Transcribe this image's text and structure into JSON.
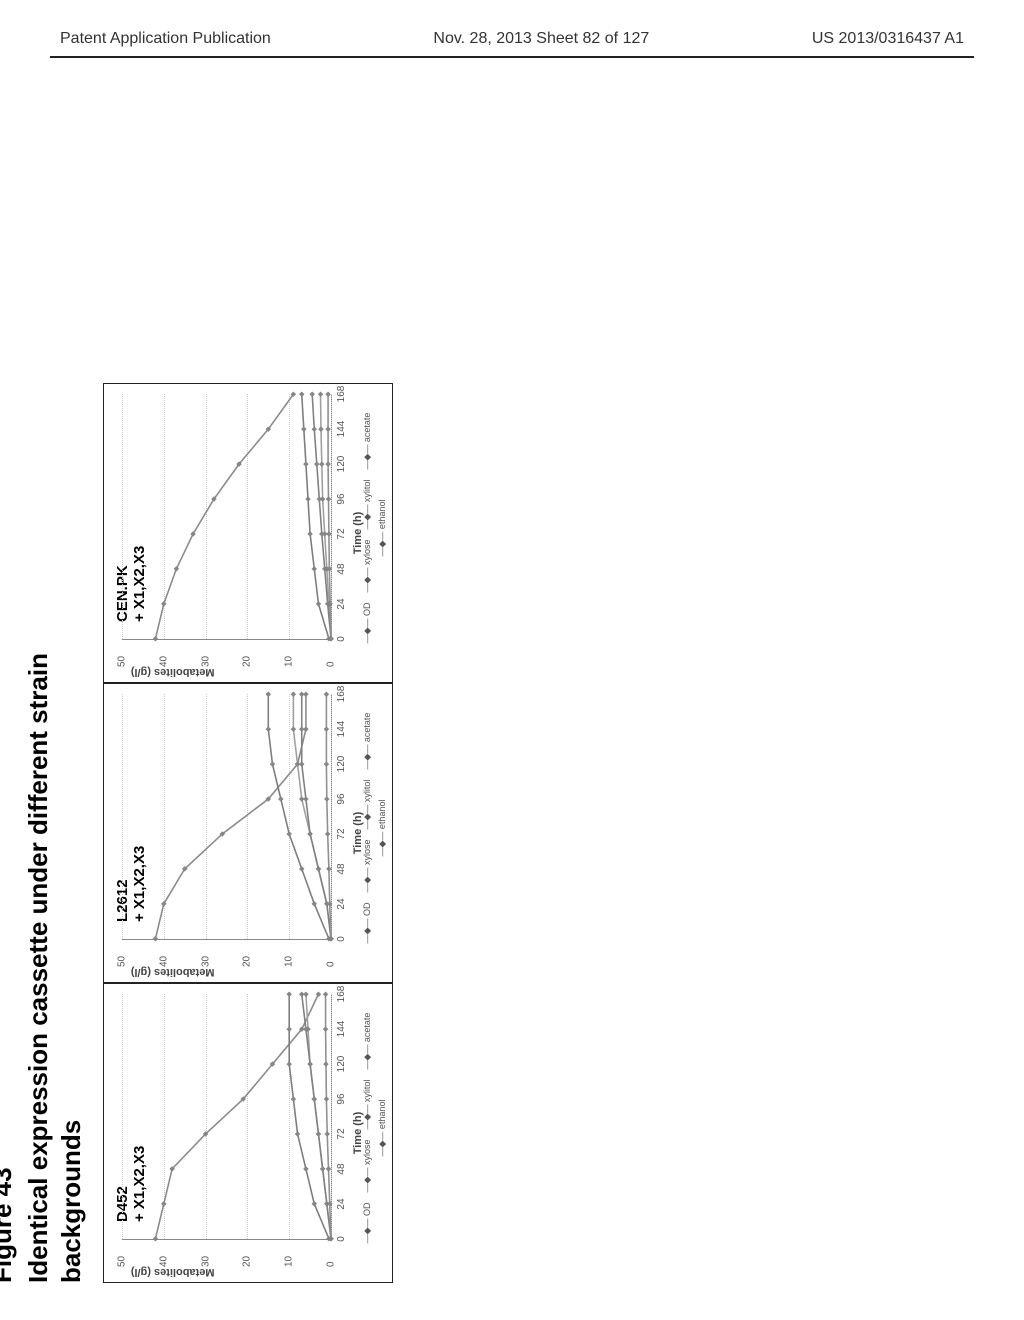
{
  "header": {
    "left": "Patent Application Publication",
    "center": "Nov. 28, 2013  Sheet 82 of 127",
    "right": "US 2013/0316437 A1"
  },
  "figure": {
    "label": "Figure 43",
    "title_line1": "Identical expression cassette under different strain",
    "title_line2": "backgrounds",
    "ylabel": "Metabolites (g/l)",
    "xlabel": "Time (h)",
    "ylim": [
      0,
      50
    ],
    "xlim": [
      0,
      168
    ],
    "yticks": [
      0,
      10,
      20,
      30,
      40,
      50
    ],
    "xticks": [
      0,
      24,
      48,
      72,
      96,
      120,
      144,
      168
    ],
    "legend": [
      "OD",
      "xylose",
      "xylitol",
      "acetate",
      "ethanol"
    ],
    "series_colors": {
      "OD": "#7d7d7d",
      "xylose": "#8a8a8a",
      "xylitol": "#a0a0a0",
      "acetate": "#8f8f8f",
      "ethanol": "#808080"
    },
    "line_width": 1.6,
    "marker": "diamond",
    "marker_size": 5,
    "grid_color": "#dddddd",
    "background_color": "#ffffff",
    "border_color": "#222222",
    "tick_fontsize": 10,
    "label_fontsize": 11,
    "title_fontsize": 26,
    "panels": [
      {
        "title_line1": "D452",
        "title_line2": "+ X1,X2,X3",
        "data": {
          "xylose": [
            [
              0,
              42
            ],
            [
              24,
              40
            ],
            [
              48,
              38
            ],
            [
              72,
              30
            ],
            [
              96,
              21
            ],
            [
              120,
              14
            ],
            [
              144,
              7
            ],
            [
              168,
              3
            ]
          ],
          "OD": [
            [
              0,
              0.5
            ],
            [
              24,
              4
            ],
            [
              48,
              6
            ],
            [
              72,
              8
            ],
            [
              96,
              9
            ],
            [
              120,
              10
            ],
            [
              144,
              10
            ],
            [
              168,
              10
            ]
          ],
          "xylitol": [
            [
              0,
              0
            ],
            [
              24,
              1
            ],
            [
              48,
              2
            ],
            [
              72,
              3
            ],
            [
              96,
              4
            ],
            [
              120,
              5
            ],
            [
              144,
              5.5
            ],
            [
              168,
              6
            ]
          ],
          "ethanol": [
            [
              0,
              0
            ],
            [
              24,
              1
            ],
            [
              48,
              2
            ],
            [
              72,
              3
            ],
            [
              96,
              4
            ],
            [
              120,
              5
            ],
            [
              144,
              6
            ],
            [
              168,
              7
            ]
          ],
          "acetate": [
            [
              0,
              0
            ],
            [
              24,
              0.3
            ],
            [
              48,
              0.6
            ],
            [
              72,
              0.9
            ],
            [
              96,
              1.1
            ],
            [
              120,
              1.2
            ],
            [
              144,
              1.3
            ],
            [
              168,
              1.3
            ]
          ]
        }
      },
      {
        "title_line1": "L2612",
        "title_line2": "+ X1,X2,X3",
        "data": {
          "xylose": [
            [
              0,
              42
            ],
            [
              24,
              40
            ],
            [
              48,
              35
            ],
            [
              72,
              26
            ],
            [
              96,
              15
            ],
            [
              120,
              8
            ],
            [
              144,
              6
            ],
            [
              168,
              6
            ]
          ],
          "OD": [
            [
              0,
              0.5
            ],
            [
              24,
              4
            ],
            [
              48,
              7
            ],
            [
              72,
              10
            ],
            [
              96,
              12
            ],
            [
              120,
              14
            ],
            [
              144,
              15
            ],
            [
              168,
              15
            ]
          ],
          "xylitol": [
            [
              0,
              0
            ],
            [
              24,
              1
            ],
            [
              48,
              3
            ],
            [
              72,
              5
            ],
            [
              96,
              7
            ],
            [
              120,
              8
            ],
            [
              144,
              9
            ],
            [
              168,
              9
            ]
          ],
          "ethanol": [
            [
              0,
              0
            ],
            [
              24,
              1
            ],
            [
              48,
              3
            ],
            [
              72,
              5
            ],
            [
              96,
              6
            ],
            [
              120,
              7
            ],
            [
              144,
              7
            ],
            [
              168,
              7
            ]
          ],
          "acetate": [
            [
              0,
              0
            ],
            [
              24,
              0.3
            ],
            [
              48,
              0.5
            ],
            [
              72,
              0.8
            ],
            [
              96,
              1.0
            ],
            [
              120,
              1.1
            ],
            [
              144,
              1.1
            ],
            [
              168,
              1.1
            ]
          ]
        }
      },
      {
        "title_line1": "CEN.PK",
        "title_line2": "+ X1,X2,X3",
        "data": {
          "xylose": [
            [
              0,
              42
            ],
            [
              24,
              40
            ],
            [
              48,
              37
            ],
            [
              72,
              33
            ],
            [
              96,
              28
            ],
            [
              120,
              22
            ],
            [
              144,
              15
            ],
            [
              168,
              9
            ]
          ],
          "OD": [
            [
              0,
              0.5
            ],
            [
              24,
              3
            ],
            [
              48,
              4
            ],
            [
              72,
              5
            ],
            [
              96,
              5.5
            ],
            [
              120,
              6
            ],
            [
              144,
              6.5
            ],
            [
              168,
              7
            ]
          ],
          "xylitol": [
            [
              0,
              0
            ],
            [
              24,
              0.5
            ],
            [
              48,
              1
            ],
            [
              72,
              1.5
            ],
            [
              96,
              2
            ],
            [
              120,
              2.2
            ],
            [
              144,
              2.4
            ],
            [
              168,
              2.5
            ]
          ],
          "ethanol": [
            [
              0,
              0
            ],
            [
              24,
              0.8
            ],
            [
              48,
              1.5
            ],
            [
              72,
              2.2
            ],
            [
              96,
              2.8
            ],
            [
              120,
              3.4
            ],
            [
              144,
              4
            ],
            [
              168,
              4.5
            ]
          ],
          "acetate": [
            [
              0,
              0
            ],
            [
              24,
              0.2
            ],
            [
              48,
              0.4
            ],
            [
              72,
              0.5
            ],
            [
              96,
              0.6
            ],
            [
              120,
              0.7
            ],
            [
              144,
              0.7
            ],
            [
              168,
              0.7
            ]
          ]
        }
      }
    ]
  }
}
